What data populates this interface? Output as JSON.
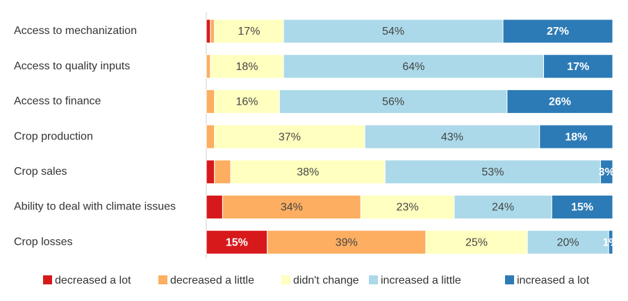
{
  "chart_data": {
    "type": "stacked-bar-100",
    "categories": [
      "Access to mechanization",
      "Access to quality inputs",
      "Access to finance",
      "Crop production",
      "Crop sales",
      "Ability to deal with climate issues",
      "Crop losses"
    ],
    "series": [
      {
        "name": "decreased a lot",
        "color": "#d7191c",
        "values": [
          1,
          0,
          0,
          0,
          2,
          4,
          15
        ],
        "value_labels": [
          null,
          null,
          null,
          null,
          null,
          null,
          "15%"
        ]
      },
      {
        "name": "decreased a little",
        "color": "#fdae61",
        "values": [
          1,
          1,
          2,
          2,
          4,
          34,
          39
        ],
        "value_labels": [
          null,
          null,
          null,
          null,
          null,
          "34%",
          "39%"
        ]
      },
      {
        "name": "didn't change",
        "color": "#ffffbf",
        "values": [
          17,
          18,
          16,
          37,
          38,
          23,
          25
        ],
        "value_labels": [
          "17%",
          "18%",
          "16%",
          "37%",
          "38%",
          "23%",
          "25%"
        ]
      },
      {
        "name": "increased a little",
        "color": "#abd9e9",
        "values": [
          54,
          64,
          56,
          43,
          53,
          24,
          20
        ],
        "value_labels": [
          "54%",
          "64%",
          "56%",
          "43%",
          "53%",
          "24%",
          "20%"
        ]
      },
      {
        "name": "increased a lot",
        "color": "#2c7bb6",
        "values": [
          27,
          17,
          26,
          18,
          3,
          15,
          1
        ],
        "value_labels": [
          "27%",
          "17%",
          "26%",
          "18%",
          "3%",
          "15%",
          "1%"
        ]
      }
    ],
    "legend": "bottom"
  }
}
